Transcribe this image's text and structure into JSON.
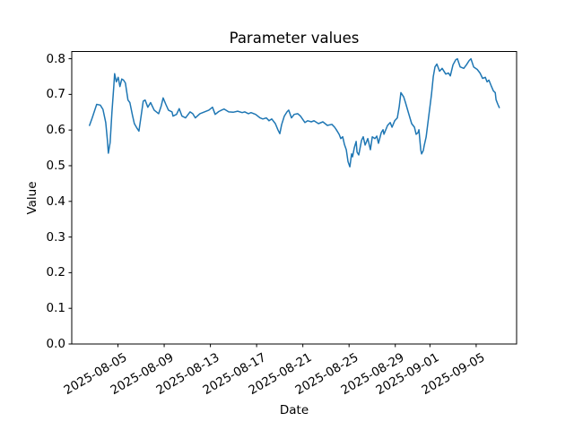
{
  "chart_data": {
    "type": "line",
    "title": "Parameter values",
    "xlabel": "Date",
    "ylabel": "Value",
    "grid": false,
    "legend": null,
    "line_color": "#1f77b4",
    "axes_color": "#000000",
    "background_color": "#ffffff",
    "x_unit": "days since 2025-08-01 00:00",
    "xlim": [
      0.0,
      38.5
    ],
    "ylim": [
      0.0,
      0.82
    ],
    "yticks": [
      0.0,
      0.1,
      0.2,
      0.3,
      0.4,
      0.5,
      0.6,
      0.7,
      0.8
    ],
    "ytick_labels": [
      "0.0",
      "0.1",
      "0.2",
      "0.3",
      "0.4",
      "0.5",
      "0.6",
      "0.7",
      "0.8"
    ],
    "xticks": [
      4,
      8,
      12,
      16,
      20,
      24,
      28,
      31,
      35
    ],
    "xtick_labels": [
      "2025-08-05",
      "2025-08-09",
      "2025-08-13",
      "2025-08-17",
      "2025-08-21",
      "2025-08-25",
      "2025-08-29",
      "2025-09-01",
      "2025-09-05"
    ],
    "points": [
      [
        1.54,
        0.613
      ],
      [
        1.77,
        0.634
      ],
      [
        2.16,
        0.672
      ],
      [
        2.47,
        0.67
      ],
      [
        2.7,
        0.658
      ],
      [
        2.94,
        0.621
      ],
      [
        3.09,
        0.57
      ],
      [
        3.17,
        0.535
      ],
      [
        3.32,
        0.565
      ],
      [
        3.48,
        0.65
      ],
      [
        3.63,
        0.72
      ],
      [
        3.71,
        0.758
      ],
      [
        3.86,
        0.735
      ],
      [
        4.02,
        0.748
      ],
      [
        4.17,
        0.722
      ],
      [
        4.33,
        0.743
      ],
      [
        4.48,
        0.74
      ],
      [
        4.64,
        0.732
      ],
      [
        4.87,
        0.684
      ],
      [
        5.03,
        0.677
      ],
      [
        5.26,
        0.64
      ],
      [
        5.42,
        0.618
      ],
      [
        5.65,
        0.605
      ],
      [
        5.81,
        0.597
      ],
      [
        5.96,
        0.63
      ],
      [
        6.19,
        0.681
      ],
      [
        6.35,
        0.684
      ],
      [
        6.58,
        0.664
      ],
      [
        6.82,
        0.677
      ],
      [
        7.13,
        0.656
      ],
      [
        7.52,
        0.646
      ],
      [
        7.75,
        0.668
      ],
      [
        7.91,
        0.69
      ],
      [
        8.14,
        0.672
      ],
      [
        8.37,
        0.656
      ],
      [
        8.68,
        0.651
      ],
      [
        8.76,
        0.639
      ],
      [
        9.07,
        0.644
      ],
      [
        9.3,
        0.66
      ],
      [
        9.54,
        0.639
      ],
      [
        9.85,
        0.634
      ],
      [
        10.24,
        0.651
      ],
      [
        10.47,
        0.646
      ],
      [
        10.7,
        0.634
      ],
      [
        11.09,
        0.646
      ],
      [
        11.48,
        0.651
      ],
      [
        11.87,
        0.656
      ],
      [
        12.18,
        0.664
      ],
      [
        12.41,
        0.644
      ],
      [
        12.72,
        0.652
      ],
      [
        12.96,
        0.656
      ],
      [
        13.19,
        0.659
      ],
      [
        13.58,
        0.651
      ],
      [
        13.97,
        0.65
      ],
      [
        14.36,
        0.653
      ],
      [
        14.75,
        0.649
      ],
      [
        14.98,
        0.651
      ],
      [
        15.29,
        0.646
      ],
      [
        15.52,
        0.649
      ],
      [
        15.91,
        0.644
      ],
      [
        16.3,
        0.634
      ],
      [
        16.53,
        0.631
      ],
      [
        16.84,
        0.634
      ],
      [
        17.08,
        0.626
      ],
      [
        17.31,
        0.631
      ],
      [
        17.62,
        0.618
      ],
      [
        17.85,
        0.6
      ],
      [
        18.01,
        0.59
      ],
      [
        18.16,
        0.615
      ],
      [
        18.4,
        0.639
      ],
      [
        18.63,
        0.651
      ],
      [
        18.78,
        0.656
      ],
      [
        19.02,
        0.634
      ],
      [
        19.25,
        0.644
      ],
      [
        19.56,
        0.646
      ],
      [
        19.79,
        0.639
      ],
      [
        20.18,
        0.621
      ],
      [
        20.42,
        0.626
      ],
      [
        20.73,
        0.623
      ],
      [
        20.96,
        0.626
      ],
      [
        21.35,
        0.618
      ],
      [
        21.73,
        0.623
      ],
      [
        22.12,
        0.613
      ],
      [
        22.51,
        0.616
      ],
      [
        22.75,
        0.608
      ],
      [
        22.9,
        0.601
      ],
      [
        23.14,
        0.588
      ],
      [
        23.29,
        0.576
      ],
      [
        23.45,
        0.581
      ],
      [
        23.6,
        0.56
      ],
      [
        23.76,
        0.545
      ],
      [
        23.91,
        0.512
      ],
      [
        24.07,
        0.497
      ],
      [
        24.22,
        0.533
      ],
      [
        24.3,
        0.525
      ],
      [
        24.46,
        0.551
      ],
      [
        24.61,
        0.568
      ],
      [
        24.69,
        0.538
      ],
      [
        24.84,
        0.53
      ],
      [
        25.08,
        0.571
      ],
      [
        25.23,
        0.581
      ],
      [
        25.39,
        0.558
      ],
      [
        25.62,
        0.576
      ],
      [
        25.85,
        0.545
      ],
      [
        26.01,
        0.581
      ],
      [
        26.24,
        0.576
      ],
      [
        26.4,
        0.583
      ],
      [
        26.55,
        0.563
      ],
      [
        26.79,
        0.593
      ],
      [
        26.94,
        0.601
      ],
      [
        27.02,
        0.588
      ],
      [
        27.33,
        0.613
      ],
      [
        27.56,
        0.621
      ],
      [
        27.72,
        0.608
      ],
      [
        27.95,
        0.626
      ],
      [
        28.18,
        0.634
      ],
      [
        28.34,
        0.665
      ],
      [
        28.49,
        0.705
      ],
      [
        28.73,
        0.693
      ],
      [
        28.88,
        0.677
      ],
      [
        29.11,
        0.652
      ],
      [
        29.27,
        0.634
      ],
      [
        29.42,
        0.618
      ],
      [
        29.66,
        0.608
      ],
      [
        29.81,
        0.588
      ],
      [
        29.97,
        0.593
      ],
      [
        30.05,
        0.601
      ],
      [
        30.2,
        0.545
      ],
      [
        30.28,
        0.533
      ],
      [
        30.43,
        0.543
      ],
      [
        30.51,
        0.558
      ],
      [
        30.67,
        0.58
      ],
      [
        30.82,
        0.62
      ],
      [
        30.98,
        0.66
      ],
      [
        31.13,
        0.7
      ],
      [
        31.29,
        0.75
      ],
      [
        31.44,
        0.777
      ],
      [
        31.6,
        0.785
      ],
      [
        31.83,
        0.765
      ],
      [
        32.06,
        0.773
      ],
      [
        32.37,
        0.757
      ],
      [
        32.61,
        0.76
      ],
      [
        32.76,
        0.752
      ],
      [
        33.0,
        0.783
      ],
      [
        33.23,
        0.797
      ],
      [
        33.38,
        0.8
      ],
      [
        33.62,
        0.777
      ],
      [
        33.93,
        0.773
      ],
      [
        34.16,
        0.783
      ],
      [
        34.39,
        0.795
      ],
      [
        34.55,
        0.8
      ],
      [
        34.78,
        0.777
      ],
      [
        35.09,
        0.77
      ],
      [
        35.33,
        0.76
      ],
      [
        35.56,
        0.745
      ],
      [
        35.79,
        0.748
      ],
      [
        35.95,
        0.735
      ],
      [
        36.1,
        0.74
      ],
      [
        36.33,
        0.722
      ],
      [
        36.49,
        0.71
      ],
      [
        36.65,
        0.705
      ],
      [
        36.72,
        0.685
      ],
      [
        36.88,
        0.672
      ],
      [
        37.0,
        0.663
      ]
    ]
  }
}
